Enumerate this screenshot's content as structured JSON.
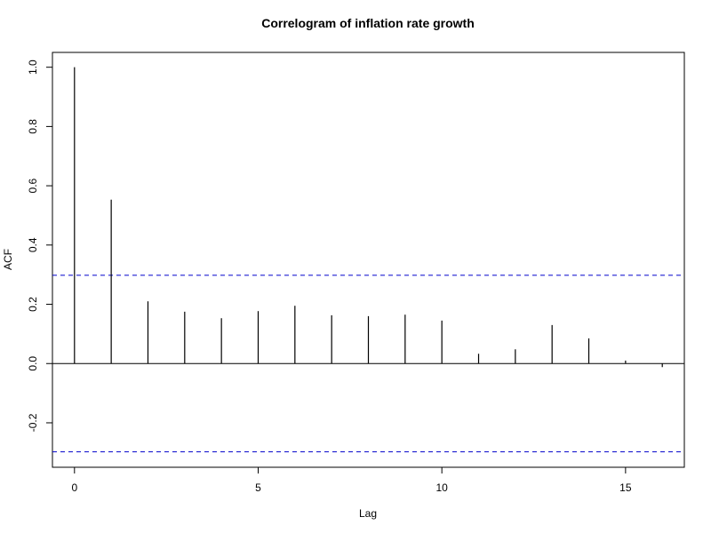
{
  "chart_data": {
    "type": "bar",
    "title": "Correlogram of inflation rate growth",
    "xlabel": "Lag",
    "ylabel": "ACF",
    "lags": [
      0,
      1,
      2,
      3,
      4,
      5,
      6,
      7,
      8,
      9,
      10,
      11,
      12,
      13,
      14,
      15,
      16
    ],
    "values": [
      1.0,
      0.553,
      0.21,
      0.175,
      0.153,
      0.177,
      0.195,
      0.163,
      0.16,
      0.165,
      0.145,
      0.033,
      0.048,
      0.13,
      0.085,
      0.01,
      -0.012
    ],
    "confidence_bounds": [
      0.298,
      -0.298
    ],
    "xlim": [
      -0.6,
      16.6
    ],
    "ylim": [
      -0.35,
      1.05
    ],
    "x_ticks": [
      0,
      5,
      10,
      15
    ],
    "x_tick_labels": [
      "0",
      "5",
      "10",
      "15"
    ],
    "y_ticks": [
      -0.2,
      0.0,
      0.2,
      0.4,
      0.6,
      0.8,
      1.0
    ],
    "y_tick_labels": [
      "-0.2",
      "0.0",
      "0.2",
      "0.4",
      "0.6",
      "0.8",
      "1.0"
    ],
    "zero_line": true,
    "grid": false,
    "colors": {
      "bars": "#000000",
      "bounds": "#0000cc",
      "frame": "#000000"
    }
  }
}
